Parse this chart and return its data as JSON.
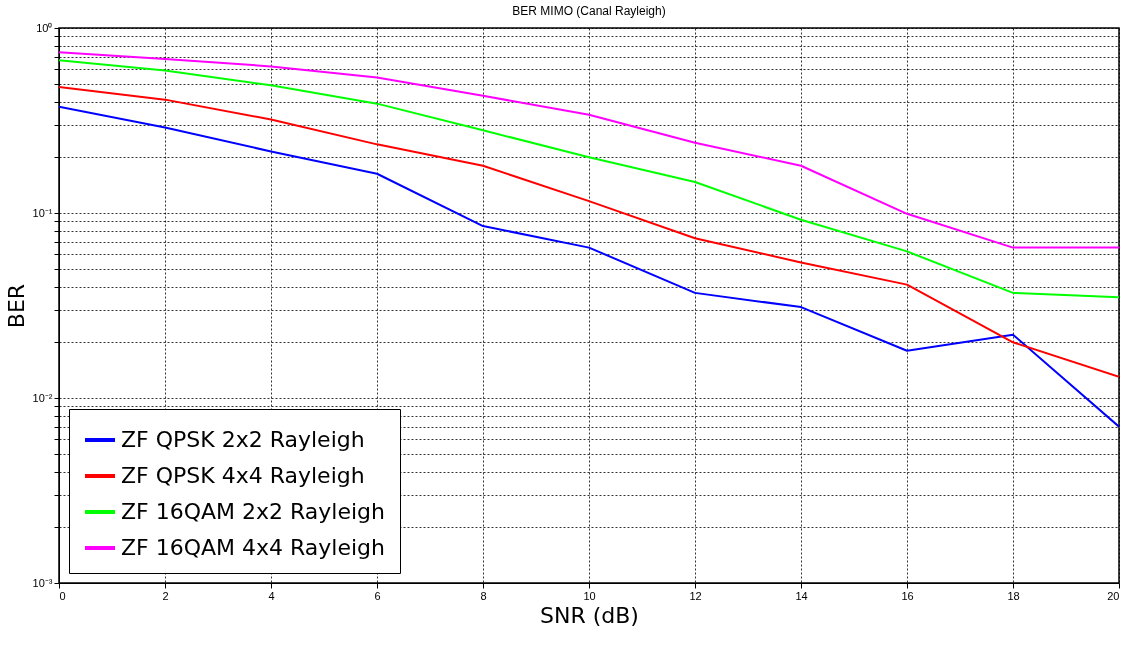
{
  "chart_data": {
    "type": "line",
    "title": "BER  MIMO (Canal Rayleigh)",
    "xlabel": "SNR (dB)",
    "ylabel": "BER",
    "x": [
      0,
      2,
      4,
      6,
      8,
      10,
      12,
      14,
      16,
      18,
      20
    ],
    "series": [
      {
        "name": "ZF QPSK 2x2 Rayleigh",
        "color": "#0000ff",
        "values": [
          0.375,
          0.29,
          0.215,
          0.163,
          0.085,
          0.065,
          0.037,
          0.031,
          0.018,
          0.022,
          0.007
        ]
      },
      {
        "name": "ZF QPSK 4x4 Rayleigh",
        "color": "#ff0000",
        "values": [
          0.48,
          0.41,
          0.32,
          0.235,
          0.18,
          0.116,
          0.073,
          0.054,
          0.041,
          0.02,
          0.013
        ]
      },
      {
        "name": "ZF 16QAM 2x2 Rayleigh",
        "color": "#00ff00",
        "values": [
          0.67,
          0.59,
          0.49,
          0.39,
          0.28,
          0.2,
          0.147,
          0.092,
          0.062,
          0.037,
          0.035
        ]
      },
      {
        "name": "ZF 16QAM 4x4 Rayleigh",
        "color": "#ff00ff",
        "values": [
          0.74,
          0.68,
          0.62,
          0.54,
          0.43,
          0.34,
          0.24,
          0.18,
          0.099,
          0.065,
          0.065
        ]
      }
    ],
    "log": "y",
    "xlim": [
      0,
      20
    ],
    "ylim": [
      0.001,
      1
    ],
    "xticks": [
      0,
      2,
      4,
      6,
      8,
      10,
      12,
      14,
      16,
      18,
      20
    ],
    "yticks": [
      {
        "value": 0.001,
        "label": "10⁻³"
      },
      {
        "value": 0.002,
        "label": null
      },
      {
        "value": 0.003,
        "label": null
      },
      {
        "value": 0.004,
        "label": null
      },
      {
        "value": 0.005,
        "label": null
      },
      {
        "value": 0.006,
        "label": null
      },
      {
        "value": 0.007,
        "label": null
      },
      {
        "value": 0.008,
        "label": null
      },
      {
        "value": 0.009,
        "label": null
      },
      {
        "value": 0.01,
        "label": "10⁻²"
      },
      {
        "value": 0.02,
        "label": null
      },
      {
        "value": 0.03,
        "label": null
      },
      {
        "value": 0.04,
        "label": null
      },
      {
        "value": 0.05,
        "label": null
      },
      {
        "value": 0.06,
        "label": null
      },
      {
        "value": 0.07,
        "label": null
      },
      {
        "value": 0.08,
        "label": null
      },
      {
        "value": 0.09,
        "label": null
      },
      {
        "value": 0.1,
        "label": "10⁻¹"
      },
      {
        "value": 0.2,
        "label": null
      },
      {
        "value": 0.3,
        "label": null
      },
      {
        "value": 0.4,
        "label": null
      },
      {
        "value": 0.5,
        "label": null
      },
      {
        "value": 0.6,
        "label": null
      },
      {
        "value": 0.7,
        "label": null
      },
      {
        "value": 0.8,
        "label": null
      },
      {
        "value": 0.9,
        "label": null
      },
      {
        "value": 1,
        "label": "10⁰"
      }
    ],
    "grid": true,
    "legend": "bottom left",
    "line_style": "solid"
  }
}
